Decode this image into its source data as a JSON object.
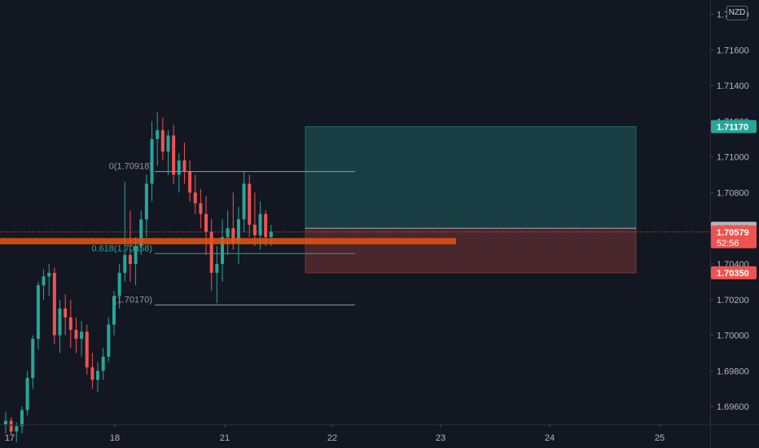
{
  "chart_data": {
    "type": "candlestick",
    "currency": "NZD",
    "ylim": [
      1.695,
      1.7188
    ],
    "y_ticks": [
      "1.71800",
      "1.71600",
      "1.71400",
      "1.71200",
      "1.71000",
      "1.70800",
      "1.70600",
      "1.70400",
      "1.70200",
      "1.70000",
      "1.69800",
      "1.69600"
    ],
    "x_ticks": [
      "17",
      "18",
      "21",
      "22",
      "23",
      "24",
      "25"
    ],
    "fib_levels": [
      {
        "label": "0(1.70918)",
        "value": 1.70918,
        "color": "#9598a1"
      },
      {
        "label": "0.618(1.70458)",
        "value": 1.70458,
        "color": "#26a69a"
      },
      {
        "label": "(1.70170)",
        "value": 1.7017,
        "color": "#9598a1"
      }
    ],
    "position": {
      "entry": 1.706,
      "target": 1.7117,
      "stop": 1.7035,
      "profit_color": "#26a69a",
      "loss_color": "#ef5350"
    },
    "price_tags": [
      {
        "label": "1.71170",
        "value": 1.7117,
        "bg": "#26a69a",
        "fg": "#ffffff"
      },
      {
        "label": "1.70600",
        "value": 1.706,
        "bg": "#b2b5be",
        "fg": "#131722"
      },
      {
        "label": "1.70579",
        "value": 1.70579,
        "bg": "#ef5350",
        "fg": "#ffffff",
        "countdown": "52:56"
      },
      {
        "label": "1.70350",
        "value": 1.7035,
        "bg": "#ef5350",
        "fg": "#ffffff"
      }
    ],
    "last_price": 1.70579,
    "highlight_zone": {
      "from": 1.7051,
      "to": 1.70545,
      "color": "#e8550f"
    },
    "candles": [
      [
        1.695,
        1.6957,
        1.6945,
        1.6952
      ],
      [
        1.6952,
        1.6954,
        1.6944,
        1.6946
      ],
      [
        1.6946,
        1.6951,
        1.694,
        1.6949
      ],
      [
        1.6949,
        1.696,
        1.6945,
        1.6958
      ],
      [
        1.6958,
        1.698,
        1.6955,
        1.6976
      ],
      [
        1.6976,
        1.7,
        1.697,
        1.6998
      ],
      [
        1.6998,
        1.703,
        1.6992,
        1.7028
      ],
      [
        1.7028,
        1.7037,
        1.702,
        1.7033
      ],
      [
        1.7033,
        1.704,
        1.7022,
        1.7035
      ],
      [
        1.7035,
        1.7038,
        1.6995,
        1.7
      ],
      [
        1.7,
        1.702,
        1.699,
        1.7015
      ],
      [
        1.7015,
        1.7023,
        1.7,
        1.701
      ],
      [
        1.701,
        1.702,
        1.6993,
        1.7003
      ],
      [
        1.7003,
        1.701,
        1.699,
        1.6998
      ],
      [
        1.6998,
        1.7008,
        1.6988,
        1.7002
      ],
      [
        1.7002,
        1.7006,
        1.6978,
        1.6982
      ],
      [
        1.6982,
        1.699,
        1.697,
        1.6975
      ],
      [
        1.6975,
        1.6985,
        1.6968,
        1.698
      ],
      [
        1.698,
        1.6993,
        1.6975,
        1.6988
      ],
      [
        1.6988,
        1.701,
        1.6985,
        1.7006
      ],
      [
        1.7006,
        1.7025,
        1.7,
        1.7022
      ],
      [
        1.7022,
        1.704,
        1.7015,
        1.7035
      ],
      [
        1.7035,
        1.7086,
        1.703,
        1.7045
      ],
      [
        1.7045,
        1.707,
        1.703,
        1.704
      ],
      [
        1.704,
        1.7055,
        1.7028,
        1.705
      ],
      [
        1.705,
        1.707,
        1.7045,
        1.7065
      ],
      [
        1.7065,
        1.709,
        1.7055,
        1.7085
      ],
      [
        1.7085,
        1.712,
        1.7075,
        1.711
      ],
      [
        1.711,
        1.7125,
        1.7095,
        1.7115
      ],
      [
        1.7115,
        1.7122,
        1.7098,
        1.7103
      ],
      [
        1.7103,
        1.7115,
        1.709,
        1.7112
      ],
      [
        1.7112,
        1.7118,
        1.7085,
        1.709
      ],
      [
        1.709,
        1.7102,
        1.708,
        1.7098
      ],
      [
        1.7098,
        1.7108,
        1.7085,
        1.7092
      ],
      [
        1.7092,
        1.7098,
        1.7075,
        1.708
      ],
      [
        1.708,
        1.709,
        1.7068,
        1.7074
      ],
      [
        1.7074,
        1.7082,
        1.706,
        1.7068
      ],
      [
        1.7068,
        1.7078,
        1.7045,
        1.7058
      ],
      [
        1.7058,
        1.7065,
        1.7025,
        1.7035
      ],
      [
        1.7035,
        1.705,
        1.7018,
        1.704
      ],
      [
        1.704,
        1.7065,
        1.703,
        1.7055
      ],
      [
        1.7055,
        1.707,
        1.7045,
        1.706
      ],
      [
        1.706,
        1.708,
        1.7048,
        1.7052
      ],
      [
        1.7052,
        1.7072,
        1.704,
        1.7065
      ],
      [
        1.7065,
        1.7092,
        1.7058,
        1.7085
      ],
      [
        1.7085,
        1.709,
        1.7055,
        1.7062
      ],
      [
        1.7062,
        1.708,
        1.705,
        1.7056
      ],
      [
        1.7056,
        1.7075,
        1.7048,
        1.7068
      ],
      [
        1.7068,
        1.707,
        1.705,
        1.7055
      ],
      [
        1.7055,
        1.7062,
        1.705,
        1.7058
      ]
    ]
  }
}
